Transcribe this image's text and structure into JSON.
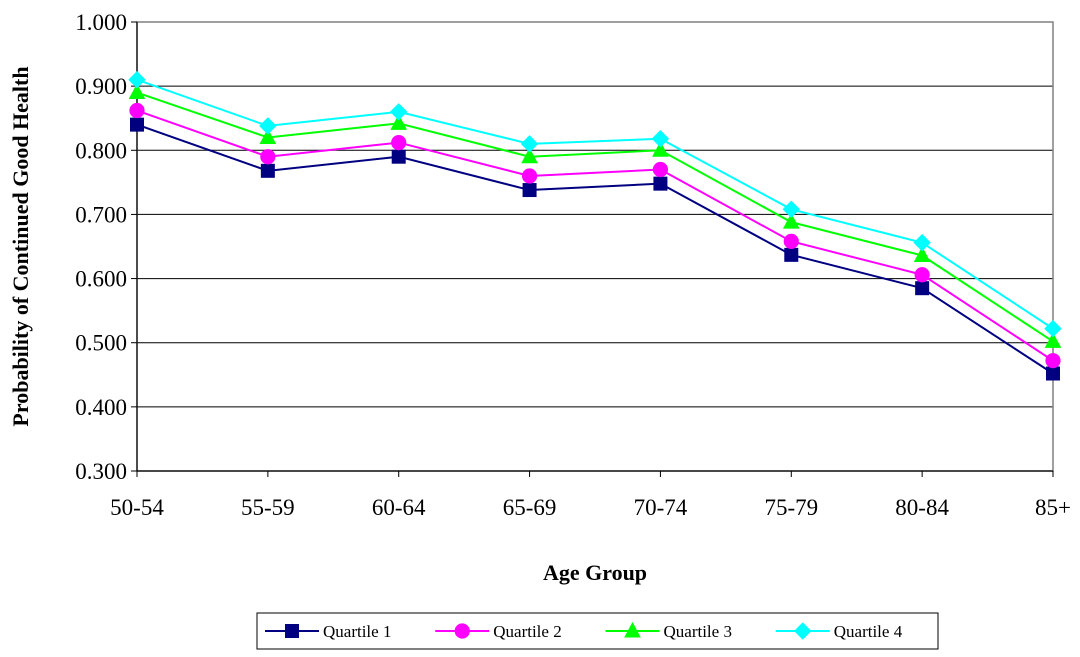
{
  "chart_data": {
    "type": "line",
    "title": "",
    "xlabel": "Age Group",
    "ylabel": "Probability of Continued Good Health",
    "categories": [
      "50-54",
      "55-59",
      "60-64",
      "65-69",
      "70-74",
      "75-79",
      "80-84",
      "85+"
    ],
    "ylim": [
      0.3,
      1.0
    ],
    "yticks": [
      "0.300",
      "0.400",
      "0.500",
      "0.600",
      "0.700",
      "0.800",
      "0.900",
      "1.000"
    ],
    "grid": true,
    "legend_position": "bottom",
    "series": [
      {
        "name": "Quartile 1",
        "color": "#000080",
        "marker": "square",
        "values": [
          0.84,
          0.768,
          0.79,
          0.738,
          0.748,
          0.637,
          0.585,
          0.452
        ]
      },
      {
        "name": "Quartile 2",
        "color": "#ff00ff",
        "marker": "circle",
        "values": [
          0.862,
          0.79,
          0.812,
          0.76,
          0.77,
          0.658,
          0.606,
          0.472
        ]
      },
      {
        "name": "Quartile 3",
        "color": "#00ff00",
        "marker": "triangle",
        "values": [
          0.89,
          0.82,
          0.842,
          0.79,
          0.8,
          0.688,
          0.636,
          0.502
        ]
      },
      {
        "name": "Quartile 4",
        "color": "#00ffff",
        "marker": "diamond",
        "values": [
          0.91,
          0.838,
          0.86,
          0.81,
          0.818,
          0.708,
          0.656,
          0.522
        ]
      }
    ]
  }
}
